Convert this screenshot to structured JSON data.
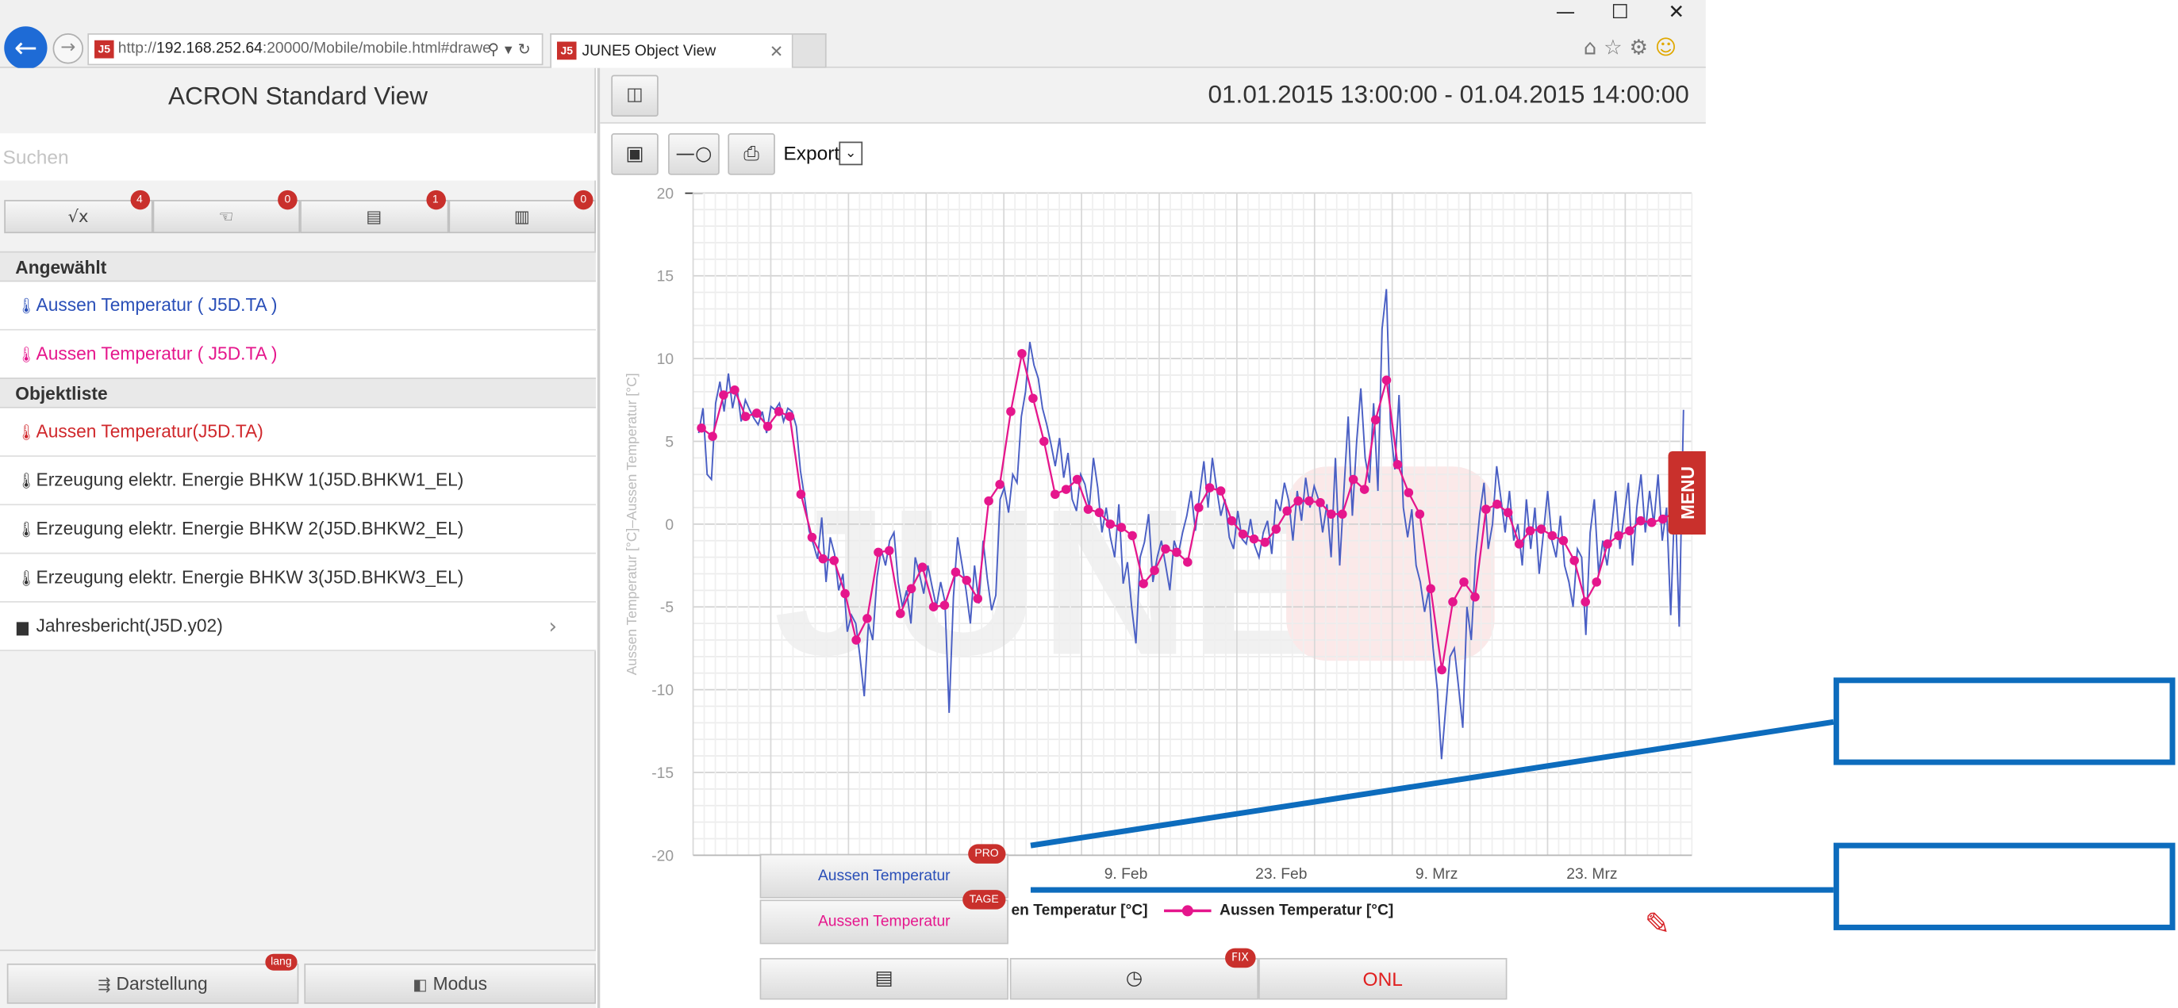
{
  "browser": {
    "url_prefix": "http://",
    "url_host": "192.168.252.64",
    "url_rest": ":20000/Mobile/mobile.html#drawe",
    "tab_title": "JUNE5 Object View",
    "logo_text": "J5",
    "minimize": "—",
    "maximize": "☐",
    "close": "✕",
    "icons": [
      "home-icon",
      "star-icon",
      "settings-icon",
      "smiley-icon"
    ]
  },
  "left": {
    "title": "ACRON Standard View",
    "search_placeholder": "Suchen",
    "filters": [
      {
        "icon": "sqrt-icon",
        "glyph": "√x",
        "badge": "4"
      },
      {
        "icon": "hand-icon",
        "glyph": "☜",
        "badge": "0"
      },
      {
        "icon": "pdf-icon",
        "glyph": "▤",
        "badge": "1"
      },
      {
        "icon": "chart-icon",
        "glyph": "▥",
        "badge": "0"
      }
    ],
    "section_selected": "Angewählt",
    "selected": [
      {
        "label": "Aussen Temperatur ( J5D.TA )",
        "color": "#2a4fb8"
      },
      {
        "label": "Aussen Temperatur ( J5D.TA )",
        "color": "#e5168c"
      }
    ],
    "section_objects": "Objektliste",
    "objects": [
      {
        "label": "Aussen Temperatur(J5D.TA)",
        "color": "#d0282c",
        "icon": "thermometer-icon"
      },
      {
        "label": "Erzeugung elektr. Energie BHKW 1(J5D.BHKW1_EL)",
        "color": "#333333",
        "icon": "thermometer-icon"
      },
      {
        "label": "Erzeugung elektr. Energie BHKW 2(J5D.BHKW2_EL)",
        "color": "#333333",
        "icon": "thermometer-icon"
      },
      {
        "label": "Erzeugung elektr. Energie BHKW 3(J5D.BHKW3_EL)",
        "color": "#333333",
        "icon": "thermometer-icon"
      },
      {
        "label": "Jahresbericht(J5D.y02)",
        "color": "#333333",
        "icon": "document-icon"
      }
    ],
    "btn_display": "Darstellung",
    "btn_display_badge": "lang",
    "btn_mode": "Modus"
  },
  "right": {
    "time_range": "01.01.2015 13:00:00 - 01.04.2015 14:00:00",
    "export_label": "Export",
    "menu_label": "MENU",
    "series_buttons": [
      {
        "label": "Aussen Temperatur",
        "badge": "PRO",
        "color": "#2a4fb8"
      },
      {
        "label": "Aussen Temperatur",
        "badge": "TAGE",
        "color": "#e5168c"
      }
    ],
    "legend": [
      {
        "label": "en Temperatur [°C]"
      },
      {
        "label": "Aussen Temperatur [°C]"
      }
    ],
    "bottom_fix_badge": "FIX",
    "bottom_onl": "ONL"
  },
  "colors": {
    "accent_red": "#c9302c",
    "blue_series": "#4a5fc4",
    "pink_series": "#e5168c",
    "callout": "#0d6cbd"
  },
  "chart_data": {
    "type": "line",
    "ylabel": "Aussen Temperatur [°C]–Aussen Temperatur [°C]",
    "ylim": [
      -20,
      20
    ],
    "yticks": [
      20,
      15,
      10,
      5,
      0,
      -5,
      -10,
      -15,
      -20
    ],
    "x_range": [
      "2015-01-01",
      "2015-04-01"
    ],
    "x_tick_labels": [
      "9. Feb",
      "23. Feb",
      "9. Mrz",
      "23. Mrz"
    ],
    "grid": true,
    "watermark": "JUNE5",
    "series": [
      {
        "name": "Aussen Temperatur [°C]",
        "style": "line",
        "values": [
          5.5,
          7.0,
          3.0,
          2.7,
          7.3,
          8.6,
          6.8,
          9.1,
          7.0,
          8.3,
          6.2,
          7.5,
          6.9,
          6.4,
          6.0,
          6.8,
          5.5,
          7.1,
          6.9,
          7.3,
          6.2,
          7.0,
          6.8,
          5.9,
          3.2,
          1.5,
          -0.4,
          -1.2,
          -2.1,
          0.4,
          -3.5,
          -0.8,
          -1.8,
          -4.0,
          -3.0,
          -6.5,
          -5.5,
          -6.0,
          -8.0,
          -10.4,
          -6.0,
          -7.0,
          -3.2,
          -1.5,
          -2.5,
          -1.0,
          -0.5,
          -3.5,
          -5.0,
          -4.0,
          -6.0,
          -2.0,
          -3.0,
          -4.2,
          -2.5,
          -3.8,
          -5.0,
          -3.5,
          -4.7,
          -11.4,
          -4.4,
          -0.8,
          -2.4,
          -4.0,
          -6.0,
          -2.5,
          -4.8,
          -1.0,
          -3.3,
          -5.2,
          -4.3,
          1.5,
          2.2,
          0.7,
          3.0,
          2.5,
          6.5,
          8.0,
          11.0,
          9.6,
          8.8,
          7.0,
          6.0,
          4.8,
          3.5,
          5.2,
          2.8,
          4.3,
          1.5,
          0.8,
          3.0,
          2.4,
          1.0,
          4.0,
          2.2,
          -0.5,
          1.0,
          -0.8,
          -2.0,
          1.2,
          -3.6,
          -2.3,
          -5.0,
          -7.2,
          -2.0,
          -1.1,
          0.6,
          -3.5,
          -2.0,
          -1.0,
          -2.5,
          -4.0,
          -1.0,
          -1.8,
          -0.5,
          0.5,
          2.0,
          -0.4,
          1.8,
          3.8,
          1.0,
          4.0,
          2.2,
          0.5,
          1.5,
          -0.8,
          -1.5,
          0.8,
          -0.9,
          -1.2,
          0.3,
          -1.3,
          -2.0,
          -0.5,
          0.2,
          -1.8,
          1.5,
          0.8,
          2.5,
          1.4,
          -1.0,
          2.0,
          0.2,
          2.8,
          1.0,
          2.3,
          1.5,
          -0.5,
          1.2,
          -2.0,
          4.0,
          -2.5,
          2.0,
          6.5,
          0.5,
          5.0,
          8.2,
          4.0,
          2.5,
          7.3,
          2.0,
          11.8,
          14.2,
          5.8,
          3.3,
          7.8,
          1.0,
          -0.8,
          0.9,
          -2.5,
          -3.5,
          -5.3,
          -4.0,
          -7.5,
          -10.0,
          -14.2,
          -11.0,
          -8.0,
          -7.5,
          -9.8,
          -12.3,
          -5.0,
          -7.0,
          -2.0,
          0.6,
          2.5,
          -1.5,
          0.0,
          3.5,
          1.5,
          -0.5,
          2.0,
          -1.0,
          0.0,
          -2.5,
          1.5,
          -1.5,
          1.0,
          -3.0,
          -0.5,
          2.0,
          -1.0,
          -2.0,
          0.5,
          -2.5,
          -3.5,
          -5.0,
          -1.5,
          -2.0,
          -6.7,
          -0.5,
          1.5,
          -3.0,
          -1.0,
          -2.5,
          -0.5,
          2.0,
          -1.5,
          0.5,
          2.5,
          -2.5,
          1.0,
          3.0,
          -0.5,
          2.0,
          0.0,
          3.0,
          -1.0,
          1.0,
          -5.5,
          2.0,
          -6.2,
          6.9
        ]
      },
      {
        "name": "Aussen Temperatur [°C]",
        "style": "line-markers",
        "values": [
          5.8,
          5.3,
          7.8,
          8.1,
          6.5,
          6.7,
          5.9,
          6.8,
          6.5,
          1.8,
          -0.8,
          -2.1,
          -2.2,
          -4.2,
          -7.0,
          -5.7,
          -1.7,
          -1.6,
          -5.4,
          -3.9,
          -2.6,
          -5.0,
          -4.9,
          -2.9,
          -3.4,
          -4.5,
          1.4,
          2.4,
          6.8,
          10.3,
          7.6,
          5.0,
          1.8,
          2.1,
          2.7,
          0.9,
          0.7,
          0.0,
          -0.2,
          -0.7,
          -3.6,
          -2.8,
          -1.5,
          -1.7,
          -2.3,
          1.0,
          2.2,
          2.0,
          0.2,
          -0.6,
          -0.9,
          -1.1,
          -0.3,
          0.8,
          1.4,
          1.4,
          1.3,
          0.6,
          0.6,
          2.7,
          2.1,
          6.3,
          8.7,
          3.6,
          1.9,
          0.6,
          -3.9,
          -8.8,
          -4.7,
          -3.5,
          -4.4,
          0.9,
          1.2,
          0.7,
          -1.2,
          -0.4,
          -0.3,
          -0.7,
          -1.0,
          -2.2,
          -4.7,
          -3.5,
          -1.2,
          -0.7,
          -0.4,
          0.2,
          0.1,
          0.3,
          0.7,
          0.4
        ]
      }
    ]
  }
}
